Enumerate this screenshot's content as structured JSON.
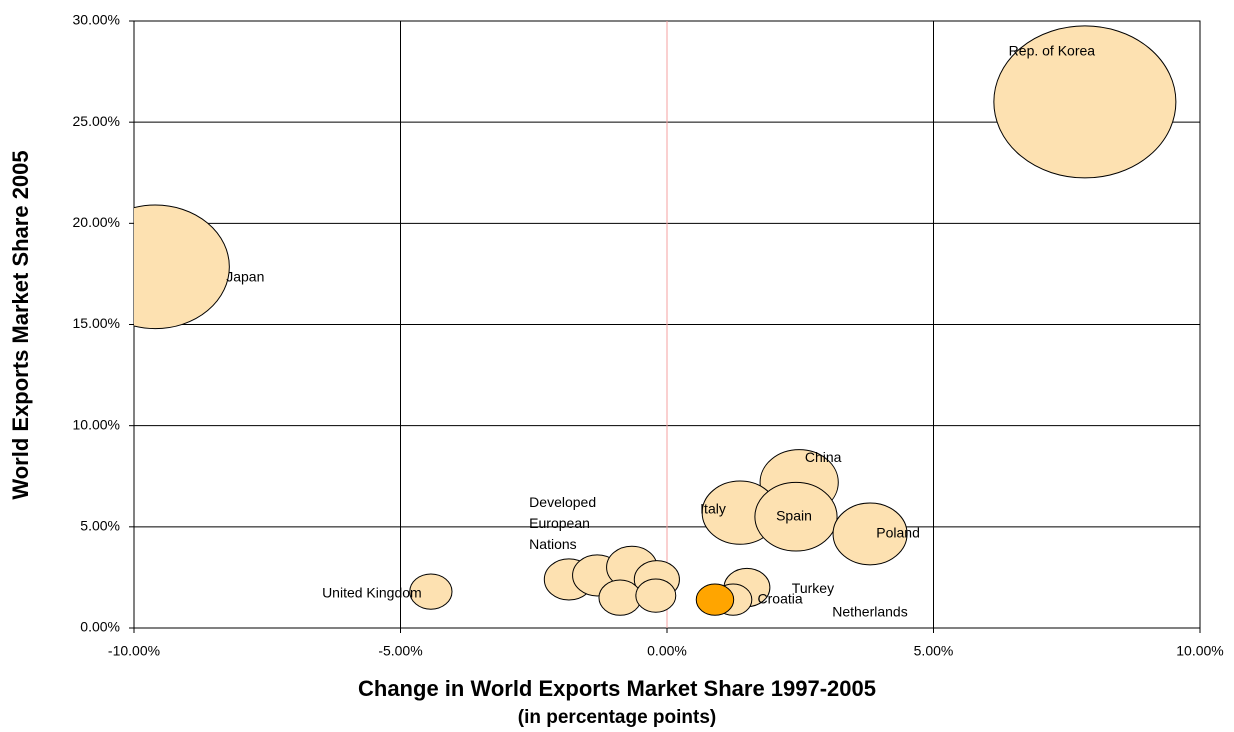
{
  "chart_data": {
    "type": "bubble",
    "x_label": "Change in World Exports Market Share 1997-2005",
    "x_sublabel": "(in percentage points)",
    "y_label": "World Exports Market Share 2005",
    "x": [
      7.84,
      -9.6,
      2.48,
      1.37,
      2.42,
      3.81,
      -4.43,
      -1.84,
      -1.31,
      -0.66,
      -0.19,
      -0.88,
      -0.21,
      1.5,
      1.24,
      0.9
    ],
    "values": [
      26.0,
      17.85,
      7.2,
      5.7,
      5.5,
      4.65,
      1.8,
      2.4,
      2.6,
      3.0,
      2.4,
      1.5,
      1.6,
      2.0,
      1.4,
      1.4
    ],
    "sizes": [
      26.0,
      17.2,
      4.8,
      4.5,
      5.3,
      4.3,
      1.4,
      1.9,
      1.9,
      2.0,
      1.6,
      1.4,
      1.25,
      1.65,
      1.1,
      1.1
    ],
    "labels": [
      "Rep. of Korea",
      "Japan",
      "China",
      "Italy",
      "Spain",
      "Poland",
      "United Kingdom",
      null,
      [
        "Developed",
        "European",
        "Nations"
      ],
      null,
      null,
      null,
      null,
      "Turkey",
      "Croatia",
      "Netherlands"
    ],
    "colors": [
      "#fde1b1",
      "#fde1b1",
      "#fde1b1",
      "#fde1b1",
      "#fde1b1",
      "#fde1b1",
      "#fde1b1",
      "#fde1b1",
      "#fde1b1",
      "#fde1b1",
      "#fde1b1",
      "#fde1b1",
      "#fde1b1",
      "#fde1b1",
      "#fde1b1",
      "#ffa500"
    ],
    "xlim": [
      -10,
      10
    ],
    "xticks": [
      {
        "value": -10,
        "label": "-10.00%"
      },
      {
        "value": -5,
        "label": "-5.00%"
      },
      {
        "value": 0,
        "label": "0.00%"
      },
      {
        "value": 5,
        "label": "5.00%"
      },
      {
        "value": 10,
        "label": "10.00%"
      }
    ],
    "ylim": [
      0,
      30
    ],
    "yticks": [
      {
        "value": 0,
        "label": "0.00%"
      },
      {
        "value": 5,
        "label": "5.00%"
      },
      {
        "value": 10,
        "label": "10.00%"
      },
      {
        "value": 15,
        "label": "15.00%"
      },
      {
        "value": 20,
        "label": "20.00%"
      },
      {
        "value": 25,
        "label": "25.00%"
      },
      {
        "value": 30,
        "label": "30.00%"
      }
    ],
    "grid": true
  }
}
